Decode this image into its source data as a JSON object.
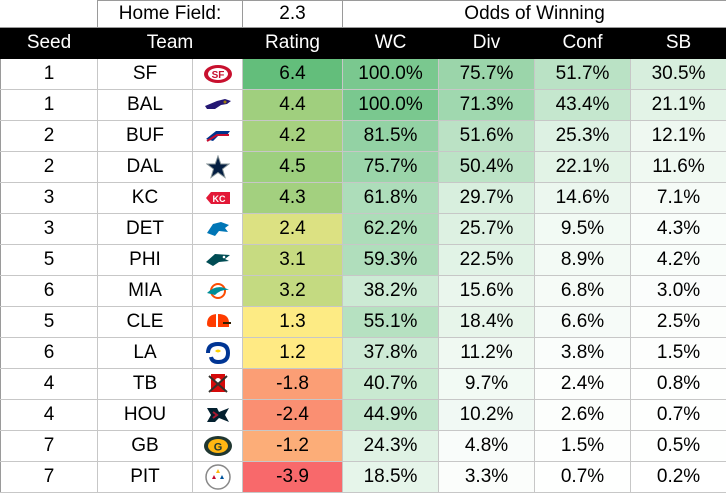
{
  "home_field": {
    "label": "Home Field:",
    "value": "2.3"
  },
  "odds_header": "Odds of Winning",
  "columns": {
    "seed": "Seed",
    "team": "Team",
    "rating": "Rating",
    "wc": "WC",
    "div": "Div",
    "conf": "Conf",
    "sb": "SB"
  },
  "colors": {
    "header_bg": "#000000",
    "header_text": "#ffffff",
    "rating_high": "#63be7b",
    "rating_mid": "#ffeb84",
    "rating_low": "#f8696b",
    "odds_high": "#63be7b",
    "odds_low": "#ffffff"
  },
  "rows": [
    {
      "seed": "1",
      "team": "SF",
      "logo": "49ers-logo",
      "rating": "6.4",
      "wc": "100.0%",
      "div": "75.7%",
      "conf": "51.7%",
      "sb": "30.5%"
    },
    {
      "seed": "1",
      "team": "BAL",
      "logo": "ravens-logo",
      "rating": "4.4",
      "wc": "100.0%",
      "div": "71.3%",
      "conf": "43.4%",
      "sb": "21.1%"
    },
    {
      "seed": "2",
      "team": "BUF",
      "logo": "bills-logo",
      "rating": "4.2",
      "wc": "81.5%",
      "div": "51.6%",
      "conf": "25.3%",
      "sb": "12.1%"
    },
    {
      "seed": "2",
      "team": "DAL",
      "logo": "cowboys-logo",
      "rating": "4.5",
      "wc": "75.7%",
      "div": "50.4%",
      "conf": "22.1%",
      "sb": "11.6%"
    },
    {
      "seed": "3",
      "team": "KC",
      "logo": "chiefs-logo",
      "rating": "4.3",
      "wc": "61.8%",
      "div": "29.7%",
      "conf": "14.6%",
      "sb": "7.1%"
    },
    {
      "seed": "3",
      "team": "DET",
      "logo": "lions-logo",
      "rating": "2.4",
      "wc": "62.2%",
      "div": "25.7%",
      "conf": "9.5%",
      "sb": "4.3%"
    },
    {
      "seed": "5",
      "team": "PHI",
      "logo": "eagles-logo",
      "rating": "3.1",
      "wc": "59.3%",
      "div": "22.5%",
      "conf": "8.9%",
      "sb": "4.2%"
    },
    {
      "seed": "6",
      "team": "MIA",
      "logo": "dolphins-logo",
      "rating": "3.2",
      "wc": "38.2%",
      "div": "15.6%",
      "conf": "6.8%",
      "sb": "3.0%"
    },
    {
      "seed": "5",
      "team": "CLE",
      "logo": "browns-logo",
      "rating": "1.3",
      "wc": "55.1%",
      "div": "18.4%",
      "conf": "6.6%",
      "sb": "2.5%"
    },
    {
      "seed": "6",
      "team": "LA",
      "logo": "rams-logo",
      "rating": "1.2",
      "wc": "37.8%",
      "div": "11.2%",
      "conf": "3.8%",
      "sb": "1.5%"
    },
    {
      "seed": "4",
      "team": "TB",
      "logo": "buccaneers-logo",
      "rating": "-1.8",
      "wc": "40.7%",
      "div": "9.7%",
      "conf": "2.4%",
      "sb": "0.8%"
    },
    {
      "seed": "4",
      "team": "HOU",
      "logo": "texans-logo",
      "rating": "-2.4",
      "wc": "44.9%",
      "div": "10.2%",
      "conf": "2.6%",
      "sb": "0.7%"
    },
    {
      "seed": "7",
      "team": "GB",
      "logo": "packers-logo",
      "rating": "-1.2",
      "wc": "24.3%",
      "div": "4.8%",
      "conf": "1.5%",
      "sb": "0.5%"
    },
    {
      "seed": "7",
      "team": "PIT",
      "logo": "steelers-logo",
      "rating": "-3.9",
      "wc": "18.5%",
      "div": "3.3%",
      "conf": "0.7%",
      "sb": "0.2%"
    }
  ]
}
